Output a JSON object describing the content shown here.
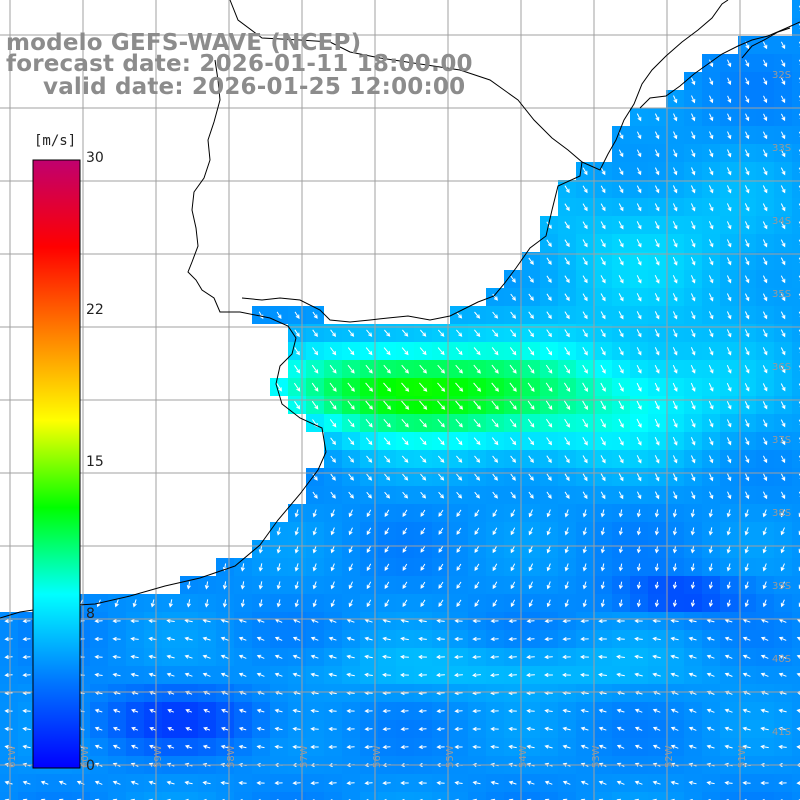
{
  "title": {
    "model": "modelo GEFS-WAVE (NCEP)",
    "forecast": "forecast date: 2026-01-11 18:00:00",
    "valid": "valid date: 2026-01-25 12:00:00"
  },
  "colorbar": {
    "unit": "[m/s]",
    "ticks": [
      "30",
      "22",
      "15",
      "8",
      "0"
    ],
    "tick_values": [
      30,
      22,
      15,
      8,
      0
    ],
    "min": 0,
    "max": 30,
    "colors": [
      "#0000ff",
      "#0078ff",
      "#00ffff",
      "#00ff00",
      "#ffff00",
      "#ff8000",
      "#ff0000",
      "#c0006f"
    ]
  },
  "grid": {
    "lat_labels": [
      "32S",
      "33S",
      "34S",
      "35S",
      "36S",
      "37S",
      "38S",
      "39S",
      "40S",
      "41S"
    ],
    "lon_labels": [
      "61W",
      "60W",
      "59W",
      "58W",
      "57W",
      "56W",
      "55W",
      "54W",
      "53W",
      "52W",
      "51W"
    ]
  },
  "colors": {
    "land": "#ffffff",
    "coast": "#000000",
    "grid": "#a0a0a0",
    "arrows": "#ffffff",
    "title": "#8c8c8c"
  }
}
